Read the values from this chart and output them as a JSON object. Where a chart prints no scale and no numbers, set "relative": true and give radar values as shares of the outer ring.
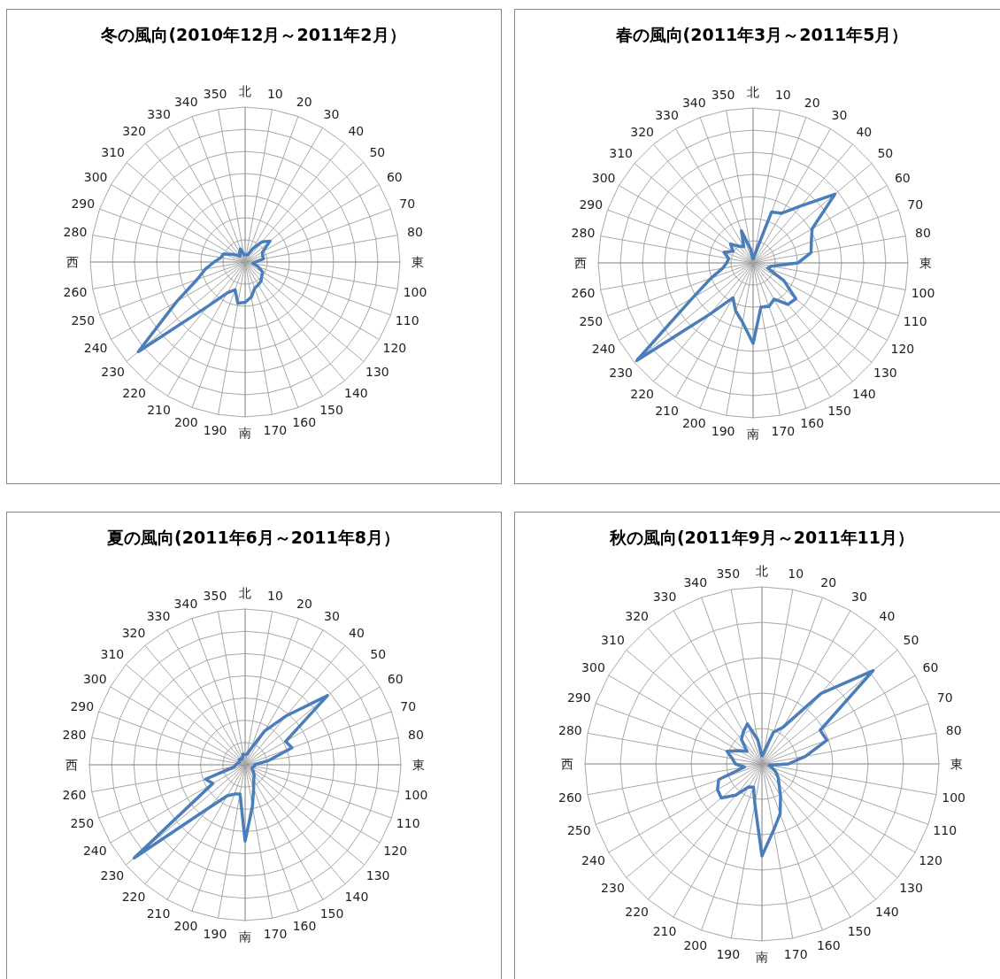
{
  "chart_data": [
    {
      "type": "radar",
      "title": "冬の風向(2010年12月～2011年2月）",
      "relative": true,
      "grid": true,
      "categories": [
        "北",
        "10",
        "20",
        "30",
        "40",
        "50",
        "60",
        "70",
        "80",
        "東",
        "100",
        "110",
        "120",
        "130",
        "140",
        "150",
        "160",
        "170",
        "南",
        "190",
        "200",
        "210",
        "220",
        "230",
        "240",
        "250",
        "260",
        "西",
        "280",
        "290",
        "300",
        "310",
        "320",
        "330",
        "340",
        "350"
      ],
      "series": [
        {
          "color": "#4a7ebb",
          "values": [
            0.04,
            0.05,
            0.05,
            0.1,
            0.17,
            0.21,
            0.13,
            0.12,
            0.12,
            0.07,
            0.05,
            0.09,
            0.13,
            0.14,
            0.16,
            0.17,
            0.18,
            0.23,
            0.26,
            0.27,
            0.19,
            0.23,
            0.37,
            0.9,
            0.51,
            0.33,
            0.26,
            0.2,
            0.16,
            0.15,
            0.1,
            0.07,
            0.05,
            0.07,
            0.09,
            0.05
          ]
        }
      ]
    },
    {
      "type": "radar",
      "title": "春の風向(2011年3月～2011年5月）",
      "relative": true,
      "grid": true,
      "categories": [
        "北",
        "10",
        "20",
        "30",
        "40",
        "50",
        "60",
        "70",
        "80",
        "東",
        "100",
        "110",
        "120",
        "130",
        "140",
        "150",
        "160",
        "170",
        "南",
        "190",
        "200",
        "210",
        "220",
        "230",
        "240",
        "250",
        "260",
        "西",
        "280",
        "290",
        "300",
        "310",
        "320",
        "330",
        "340",
        "350"
      ],
      "series": [
        {
          "color": "#4a7ebb",
          "values": [
            0.02,
            0.05,
            0.35,
            0.37,
            0.48,
            0.69,
            0.44,
            0.4,
            0.38,
            0.29,
            0.12,
            0.1,
            0.23,
            0.36,
            0.35,
            0.27,
            0.3,
            0.29,
            0.52,
            0.39,
            0.33,
            0.26,
            0.43,
            0.98,
            0.45,
            0.29,
            0.2,
            0.17,
            0.16,
            0.2,
            0.15,
            0.19,
            0.14,
            0.12,
            0.22,
            0.09
          ]
        }
      ]
    },
    {
      "type": "radar",
      "title": "夏の風向(2011年6月～2011年8月）",
      "relative": true,
      "grid": true,
      "categories": [
        "北",
        "10",
        "20",
        "30",
        "40",
        "50",
        "60",
        "70",
        "80",
        "東",
        "100",
        "110",
        "120",
        "130",
        "140",
        "150",
        "160",
        "170",
        "南",
        "190",
        "200",
        "210",
        "220",
        "230",
        "240",
        "250",
        "260",
        "西",
        "280",
        "290",
        "300",
        "310",
        "320",
        "330",
        "340",
        "350"
      ],
      "series": [
        {
          "color": "#4a7ebb",
          "values": [
            0.06,
            0.07,
            0.11,
            0.25,
            0.41,
            0.69,
            0.3,
            0.32,
            0.15,
            0.06,
            0.06,
            0.05,
            0.05,
            0.07,
            0.09,
            0.11,
            0.16,
            0.27,
            0.49,
            0.19,
            0.2,
            0.23,
            0.36,
            0.93,
            0.24,
            0.27,
            0.07,
            0.06,
            0.05,
            0.04,
            0.04,
            0.05,
            0.05,
            0.04,
            0.05,
            0.07
          ]
        }
      ]
    },
    {
      "type": "radar",
      "title": "秋の風向(2011年9月～2011年11月）",
      "relative": true,
      "grid": true,
      "categories": [
        "北",
        "10",
        "20",
        "30",
        "40",
        "50",
        "60",
        "70",
        "80",
        "東",
        "100",
        "110",
        "120",
        "130",
        "140",
        "150",
        "160",
        "170",
        "南",
        "190",
        "200",
        "210",
        "220",
        "230",
        "240",
        "250",
        "260",
        "西",
        "280",
        "290",
        "300",
        "310",
        "320",
        "330",
        "340",
        "350"
      ],
      "series": [
        {
          "color": "#4a7ebb",
          "values": [
            0.04,
            0.07,
            0.19,
            0.24,
            0.52,
            0.82,
            0.38,
            0.39,
            0.25,
            0.15,
            0.04,
            0.06,
            0.09,
            0.12,
            0.15,
            0.21,
            0.3,
            0.38,
            0.52,
            0.23,
            0.14,
            0.15,
            0.23,
            0.3,
            0.29,
            0.26,
            0.1,
            0.15,
            0.17,
            0.21,
            0.15,
            0.11,
            0.18,
            0.21,
            0.24,
            0.14
          ]
        }
      ]
    }
  ]
}
